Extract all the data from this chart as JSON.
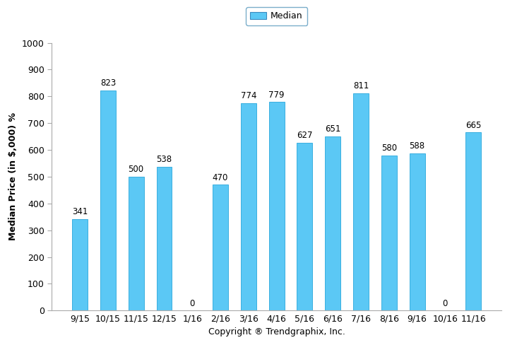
{
  "categories": [
    "9/15",
    "10/15",
    "11/15",
    "12/15",
    "1/16",
    "2/16",
    "3/16",
    "4/16",
    "5/16",
    "6/16",
    "7/16",
    "8/16",
    "9/16",
    "10/16",
    "11/16"
  ],
  "values": [
    341,
    823,
    500,
    538,
    0,
    470,
    774,
    779,
    627,
    651,
    811,
    580,
    588,
    0,
    665
  ],
  "bar_color": "#5BC8F5",
  "bar_edge_color": "#3aafe0",
  "ylim": [
    0,
    1000
  ],
  "yticks": [
    0,
    100,
    200,
    300,
    400,
    500,
    600,
    700,
    800,
    900,
    1000
  ],
  "ylabel": "Median Price (in $,000) %",
  "xlabel": "Copyright ® Trendgraphix, Inc.",
  "legend_label": "Median",
  "legend_facecolor": "#5BC8F5",
  "legend_edgecolor": "#3a8abf",
  "label_fontsize": 9,
  "tick_fontsize": 9,
  "bar_label_fontsize": 8.5,
  "background_color": "#ffffff",
  "spine_color": "#aaaaaa"
}
